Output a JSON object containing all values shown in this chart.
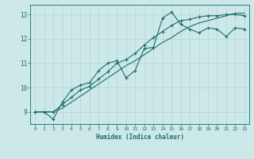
{
  "title": "",
  "xlabel": "Humidex (Indice chaleur)",
  "background_color": "#cce8e8",
  "grid_color": "#b8d8d8",
  "line_color": "#1a6e6a",
  "x_values": [
    0,
    1,
    2,
    3,
    4,
    5,
    6,
    7,
    8,
    9,
    10,
    11,
    12,
    13,
    14,
    15,
    16,
    17,
    18,
    19,
    20,
    21,
    22,
    23
  ],
  "line1": [
    9.0,
    9.0,
    8.7,
    9.4,
    9.9,
    10.1,
    10.2,
    10.7,
    11.0,
    11.1,
    10.4,
    10.7,
    11.6,
    11.65,
    12.85,
    13.1,
    12.6,
    12.4,
    12.25,
    12.45,
    12.4,
    12.1,
    12.45,
    12.4
  ],
  "line2": [
    9.0,
    9.0,
    9.0,
    9.3,
    9.6,
    9.9,
    10.05,
    10.35,
    10.65,
    11.0,
    11.15,
    11.4,
    11.75,
    12.05,
    12.3,
    12.55,
    12.75,
    12.8,
    12.9,
    12.95,
    12.95,
    13.0,
    13.0,
    12.95
  ],
  "line3": [
    9.0,
    9.0,
    9.0,
    9.15,
    9.4,
    9.65,
    9.9,
    10.15,
    10.4,
    10.65,
    10.9,
    11.1,
    11.35,
    11.6,
    11.85,
    12.05,
    12.3,
    12.5,
    12.65,
    12.75,
    12.85,
    12.95,
    13.05,
    13.05
  ],
  "ylim": [
    8.5,
    13.4
  ],
  "xlim": [
    -0.5,
    23.5
  ],
  "yticks": [
    9,
    10,
    11,
    12,
    13
  ],
  "xticks": [
    0,
    1,
    2,
    3,
    4,
    5,
    6,
    7,
    8,
    9,
    10,
    11,
    12,
    13,
    14,
    15,
    16,
    17,
    18,
    19,
    20,
    21,
    22,
    23
  ],
  "markersize": 3.5,
  "linewidth": 0.8
}
